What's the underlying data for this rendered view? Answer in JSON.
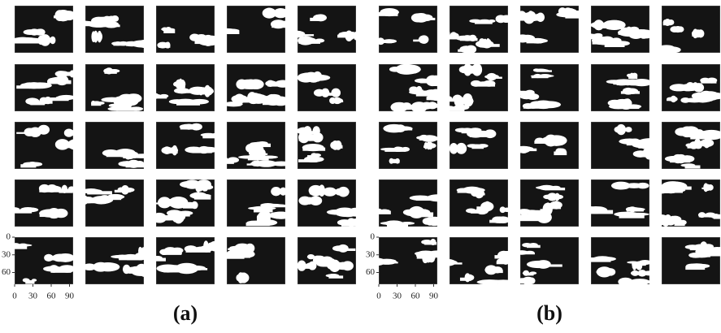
{
  "figures": [
    {
      "label": "(a)",
      "xlim": [
        0,
        96
      ],
      "ylim": [
        0,
        80
      ],
      "xticks": [
        0,
        30,
        60,
        90
      ],
      "yticks": [
        0,
        30,
        60
      ]
    },
    {
      "label": "(b)",
      "xlim": [
        0,
        96
      ],
      "ylim": [
        0,
        80
      ],
      "xticks": [
        0,
        30,
        60,
        90
      ],
      "yticks": [
        0,
        30,
        60
      ]
    }
  ]
}
